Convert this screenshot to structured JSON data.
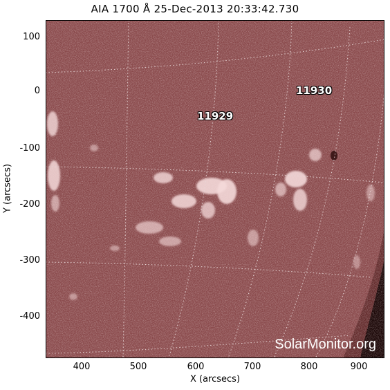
{
  "title": "AIA 1700 Å 25-Dec-2013 20:33:42.730",
  "axes": {
    "xlabel": "X (arcsecs)",
    "ylabel": "Y (arcsecs)",
    "xticks": [
      "400",
      "500",
      "600",
      "700",
      "800",
      "900"
    ],
    "yticks": [
      "100",
      "0",
      "-100",
      "-200",
      "-300",
      "-400"
    ]
  },
  "regions": [
    {
      "label": "11929"
    },
    {
      "label": "11930"
    }
  ],
  "watermark": "SolarMonitor.org",
  "colors": {
    "disk": "#8a4a4c",
    "disk_dark": "#5a2426",
    "limb": "#1a0606",
    "bright": "#f4d9d9"
  }
}
